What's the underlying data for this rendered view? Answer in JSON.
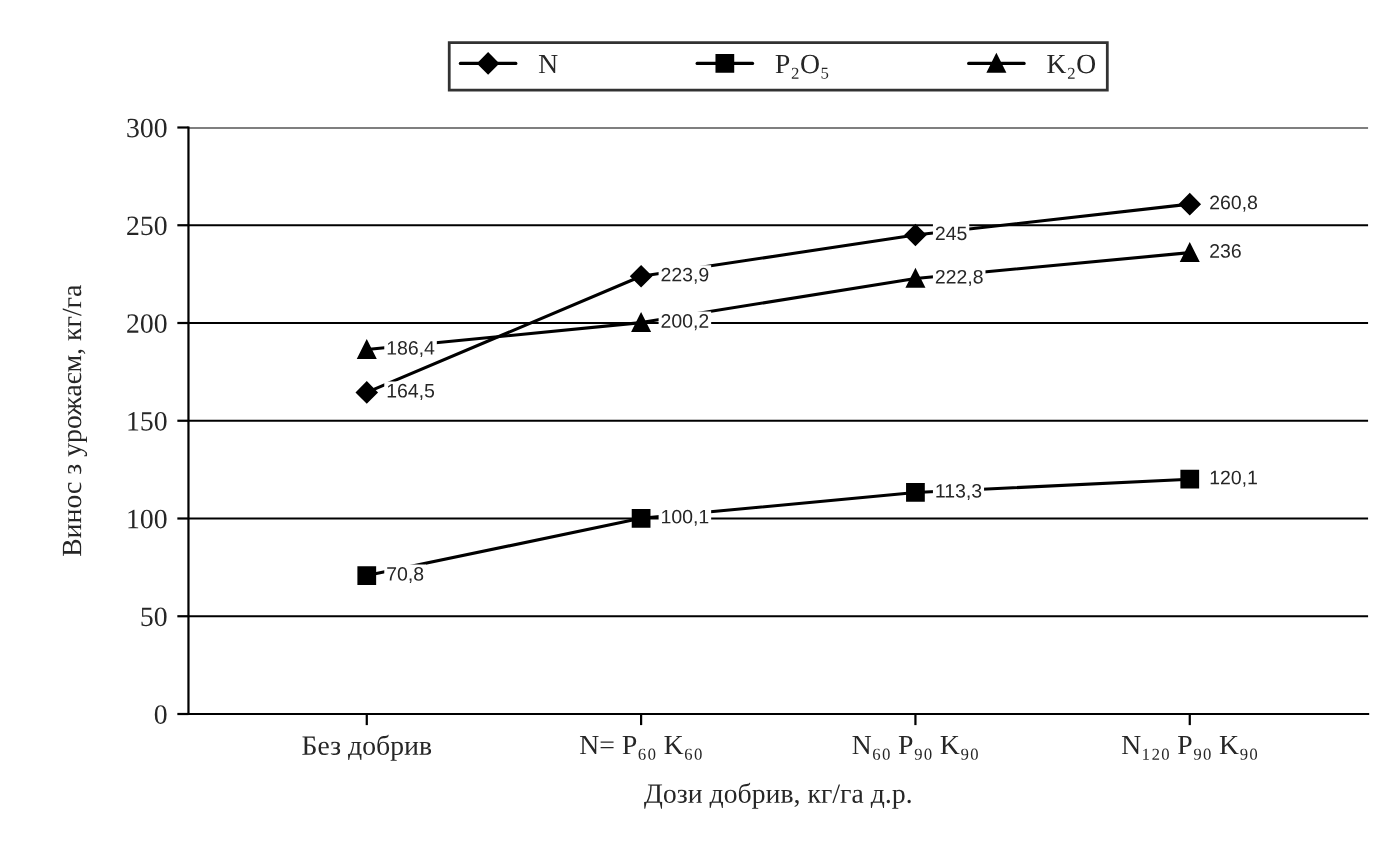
{
  "chart_data": {
    "type": "line",
    "xlabel": "Дози добрив, кг/га д.р.",
    "ylabel": "Винос з урожаєм, кг/га",
    "categories": [
      "Без добрив",
      "N= P₆₀ K₆₀",
      "N₆₀ P₉₀ K₉₀",
      "N₁₂₀ P₉₀ K₉₀"
    ],
    "series": [
      {
        "name": "N",
        "color": "#000000",
        "marker": "diamond",
        "values": [
          164.5,
          223.9,
          245,
          260.8
        ],
        "value_labels": [
          "164,5",
          "223,9",
          "245",
          "260,8"
        ]
      },
      {
        "name": "P₂O₅",
        "color": "#000000",
        "marker": "square",
        "values": [
          70.8,
          100.1,
          113.3,
          120.1
        ],
        "value_labels": [
          "70,8",
          "100,1",
          "113,3",
          "120,1"
        ]
      },
      {
        "name": "K₂O",
        "color": "#000000",
        "marker": "triangle",
        "values": [
          186.4,
          200.2,
          222.8,
          236
        ],
        "value_labels": [
          "186,4",
          "200,2",
          "222,8",
          "236"
        ]
      }
    ],
    "ylim": [
      0,
      300
    ],
    "yticks": [
      0,
      50,
      100,
      150,
      200,
      250,
      300
    ],
    "grid": "y",
    "legend": "top",
    "line_style": "solid"
  }
}
